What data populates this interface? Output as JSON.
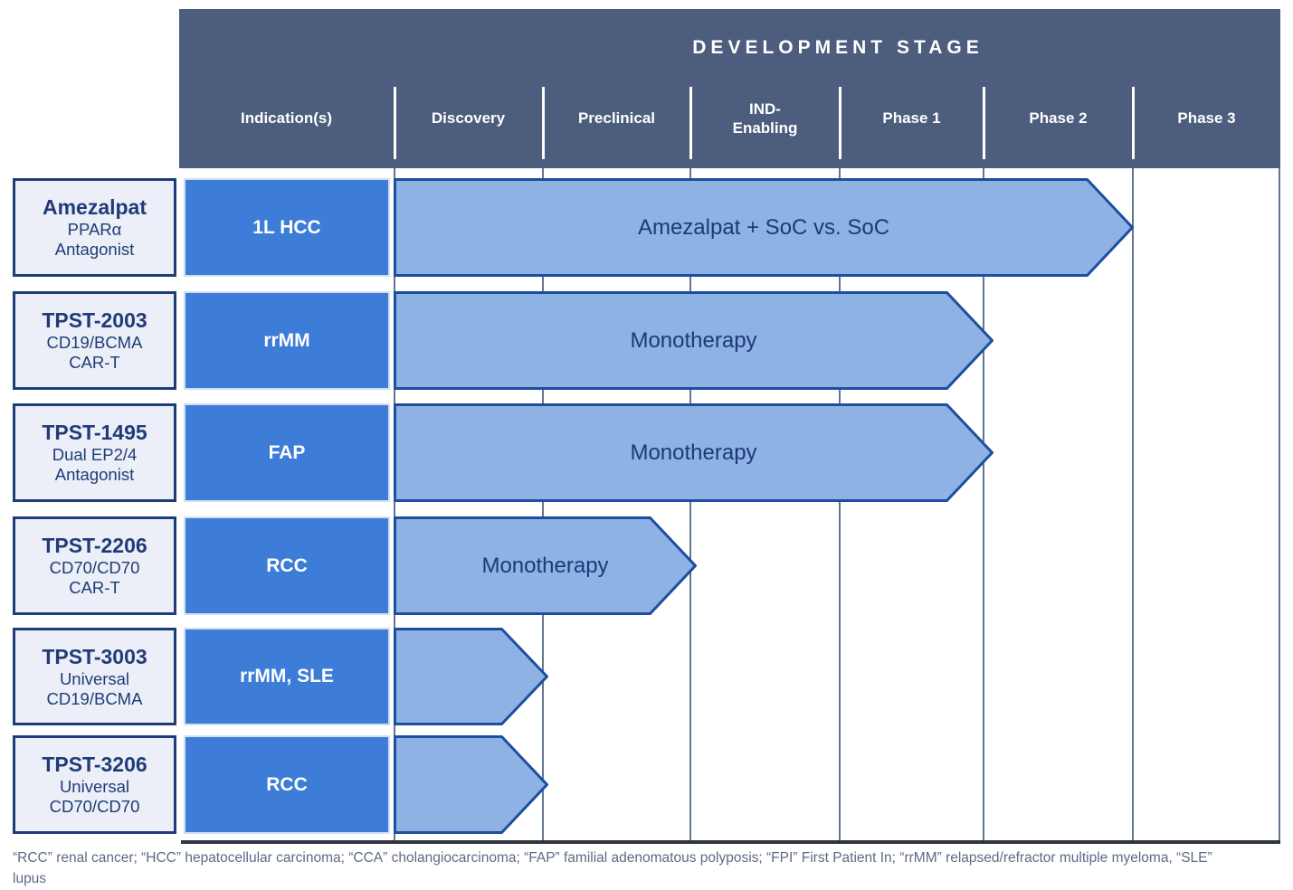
{
  "header": {
    "title": "DEVELOPMENT STAGE",
    "columns": [
      {
        "label": "Indication(s)"
      },
      {
        "label": "Discovery"
      },
      {
        "label": "Preclinical"
      },
      {
        "label": "IND-\nEnabling"
      },
      {
        "label": "Phase 1"
      },
      {
        "label": "Phase 2"
      },
      {
        "label": "Phase 3"
      }
    ]
  },
  "rows": [
    {
      "program": "Amezalpat",
      "subtitle": "PPARα\nAntagonist",
      "indication": "1L HCC",
      "arrow": {
        "label": "Amezalpat + SoC vs. SoC",
        "stage_reached": "Phase 2"
      }
    },
    {
      "program": "TPST-2003",
      "subtitle": "CD19/BCMA\nCAR-T",
      "indication": "rrMM",
      "arrow": {
        "label": "Monotherapy",
        "stage_reached": "Phase 1"
      }
    },
    {
      "program": "TPST-1495",
      "subtitle": "Dual EP2/4\nAntagonist",
      "indication": "FAP",
      "arrow": {
        "label": "Monotherapy",
        "stage_reached": "Phase 1"
      }
    },
    {
      "program": "TPST-2206",
      "subtitle": "CD70/CD70\nCAR-T",
      "indication": "RCC",
      "arrow": {
        "label": "Monotherapy",
        "stage_reached": "Preclinical"
      }
    },
    {
      "program": "TPST-3003",
      "subtitle": "Universal\nCD19/BCMA",
      "indication": "rrMM, SLE",
      "arrow": {
        "label": "",
        "stage_reached": "Discovery"
      }
    },
    {
      "program": "TPST-3206",
      "subtitle": "Universal\nCD70/CD70",
      "indication": "RCC",
      "arrow": {
        "label": "",
        "stage_reached": "Discovery"
      }
    }
  ],
  "footnote": "“RCC” renal cancer; “HCC” hepatocellular carcinoma; “CCA” cholangiocarcinoma; “FAP” familial adenomatous polyposis; “FPI” First Patient In; “rrMM” relapsed/refractor multiple myeloma, “SLE” lupus",
  "colors": {
    "header_bg": "#4c5d7d",
    "indication_bg": "#3d7cd7",
    "arrow_fill": "#8fb2e5",
    "arrow_border": "#1e4ea0",
    "box_border": "#1f3c78",
    "box_bg": "#eceff7",
    "grid_line": "#64748f",
    "footnote_text": "#5d6b85"
  },
  "chart_data": {
    "type": "table",
    "title": "DEVELOPMENT STAGE",
    "stages": [
      "Discovery",
      "Preclinical",
      "IND-Enabling",
      "Phase 1",
      "Phase 2",
      "Phase 3"
    ],
    "programs": [
      {
        "name": "Amezalpat",
        "mechanism": "PPARα Antagonist",
        "indication": "1L HCC",
        "trial_label": "Amezalpat + SoC vs. SoC",
        "stage_reached": "Phase 2"
      },
      {
        "name": "TPST-2003",
        "mechanism": "CD19/BCMA CAR-T",
        "indication": "rrMM",
        "trial_label": "Monotherapy",
        "stage_reached": "Phase 1"
      },
      {
        "name": "TPST-1495",
        "mechanism": "Dual EP2/4 Antagonist",
        "indication": "FAP",
        "trial_label": "Monotherapy",
        "stage_reached": "Phase 1"
      },
      {
        "name": "TPST-2206",
        "mechanism": "CD70/CD70 CAR-T",
        "indication": "RCC",
        "trial_label": "Monotherapy",
        "stage_reached": "Preclinical"
      },
      {
        "name": "TPST-3003",
        "mechanism": "Universal CD19/BCMA",
        "indication": "rrMM, SLE",
        "trial_label": "",
        "stage_reached": "Discovery"
      },
      {
        "name": "TPST-3206",
        "mechanism": "Universal CD70/CD70",
        "indication": "RCC",
        "trial_label": "",
        "stage_reached": "Discovery"
      }
    ]
  }
}
